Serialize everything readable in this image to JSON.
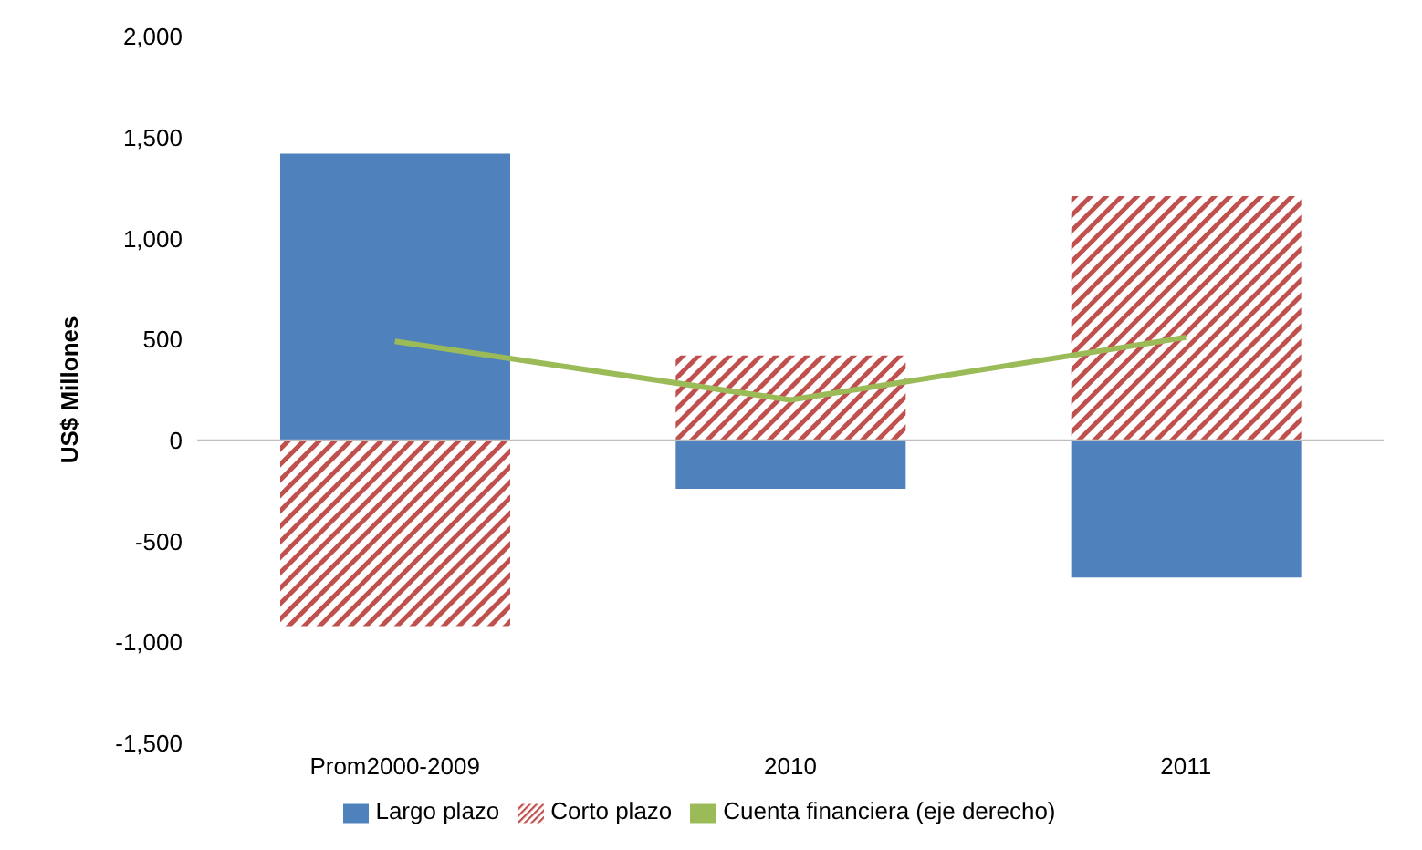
{
  "chart_data": {
    "type": "bar",
    "ylabel": "US$ Millones",
    "categories": [
      "Prom2000-2009",
      "2010",
      "2011"
    ],
    "series": [
      {
        "name": "Largo plazo",
        "color": "#4f81bd",
        "values": [
          1420,
          -240,
          -680
        ]
      },
      {
        "name": "Corto plazo",
        "color": "#c0504d",
        "values": [
          -920,
          420,
          1210
        ]
      },
      {
        "name": "Cuenta financiera (eje derecho)",
        "type": "line",
        "color": "#9bbb59",
        "values": [
          490,
          200,
          510
        ]
      }
    ],
    "stacked": true,
    "ylim": [
      -1500,
      2000
    ],
    "yticks": [
      {
        "value": -1500,
        "label": "-1,500"
      },
      {
        "value": -1000,
        "label": "-1,000"
      },
      -500,
      0,
      500,
      {
        "value": 1000,
        "label": "1,000"
      },
      {
        "value": 1500,
        "label": "1,500"
      },
      {
        "value": 2000,
        "label": "2,000"
      }
    ],
    "grid": false,
    "ref_lines": [
      {
        "axis": "y",
        "value": 0,
        "color": "#bfbfbf"
      }
    ],
    "legend": "bottom"
  }
}
